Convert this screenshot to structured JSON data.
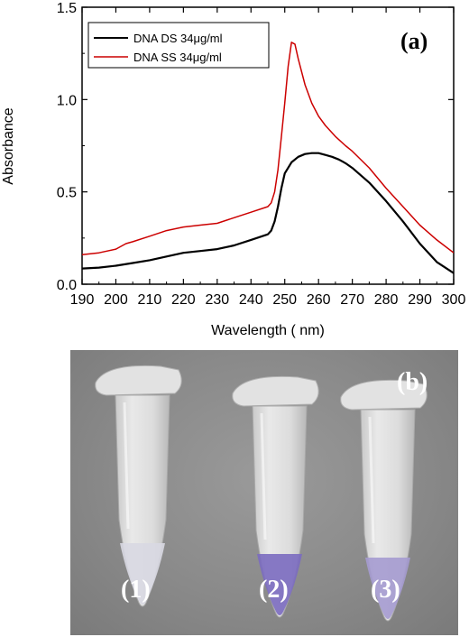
{
  "chart_data": {
    "type": "line",
    "panel_label": "(a)",
    "xlabel": "Wavelength (  nm)",
    "ylabel": "Absorbance",
    "xlim": [
      190,
      300
    ],
    "ylim": [
      0.0,
      1.5
    ],
    "x_ticks": [
      190,
      200,
      210,
      220,
      230,
      240,
      250,
      260,
      270,
      280,
      290,
      300
    ],
    "y_ticks": [
      "0.0",
      "0.5",
      "1.0",
      "1.5"
    ],
    "legend_position": "top-left",
    "series": [
      {
        "name": "DNA DS 34μg/ml",
        "color": "#000000",
        "x": [
          190,
          195,
          200,
          205,
          210,
          215,
          220,
          225,
          230,
          235,
          240,
          245,
          246,
          247,
          248,
          249,
          250,
          252,
          254,
          256,
          258,
          260,
          262,
          264,
          266,
          268,
          270,
          275,
          280,
          285,
          290,
          295,
          300
        ],
        "y": [
          0.085,
          0.09,
          0.1,
          0.115,
          0.13,
          0.15,
          0.17,
          0.18,
          0.19,
          0.21,
          0.24,
          0.27,
          0.29,
          0.34,
          0.42,
          0.52,
          0.6,
          0.66,
          0.69,
          0.705,
          0.71,
          0.71,
          0.7,
          0.69,
          0.675,
          0.655,
          0.63,
          0.55,
          0.45,
          0.34,
          0.22,
          0.12,
          0.06
        ]
      },
      {
        "name": "DNA SS 34μg/ml",
        "color": "#cc0000",
        "x": [
          190,
          195,
          200,
          203,
          205,
          210,
          215,
          220,
          225,
          230,
          235,
          240,
          245,
          246,
          247,
          248,
          249,
          250,
          251,
          252,
          253,
          254,
          256,
          258,
          260,
          262,
          265,
          268,
          270,
          275,
          280,
          285,
          290,
          295,
          300
        ],
        "y": [
          0.16,
          0.17,
          0.19,
          0.22,
          0.23,
          0.26,
          0.29,
          0.31,
          0.32,
          0.33,
          0.36,
          0.39,
          0.42,
          0.44,
          0.5,
          0.62,
          0.8,
          0.98,
          1.18,
          1.31,
          1.3,
          1.22,
          1.08,
          0.98,
          0.91,
          0.86,
          0.8,
          0.75,
          0.72,
          0.63,
          0.52,
          0.42,
          0.32,
          0.24,
          0.17
        ]
      }
    ]
  },
  "photo": {
    "panel_label": "(b)",
    "tubes": [
      {
        "label": "(1)",
        "liquid_color": "#d8d8e2"
      },
      {
        "label": "(2)",
        "liquid_color": "#7b6cc0"
      },
      {
        "label": "(3)",
        "liquid_color": "#a59bd0"
      }
    ]
  }
}
